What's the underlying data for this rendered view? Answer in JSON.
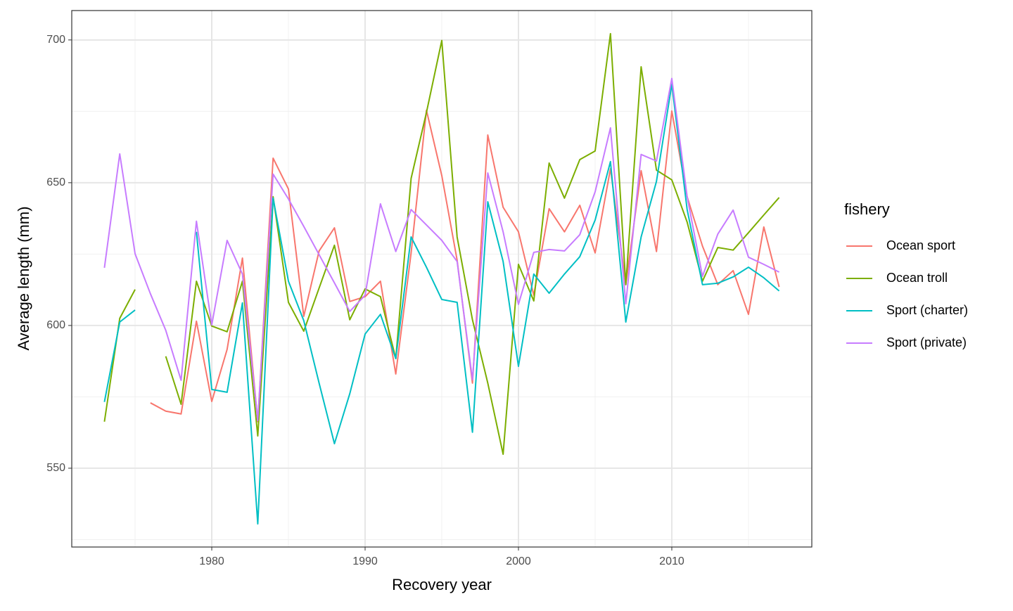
{
  "chart_data": {
    "type": "line",
    "xlabel": "Recovery year",
    "ylabel": "Average length (mm)",
    "legend_title": "fishery",
    "legend_position": "right",
    "grid": true,
    "x": [
      1973,
      1974,
      1975,
      1976,
      1977,
      1978,
      1979,
      1980,
      1981,
      1982,
      1983,
      1984,
      1985,
      1986,
      1987,
      1988,
      1989,
      1990,
      1991,
      1992,
      1993,
      1994,
      1995,
      1996,
      1997,
      1998,
      1999,
      2000,
      2001,
      2002,
      2003,
      2004,
      2005,
      2006,
      2007,
      2008,
      2009,
      2010,
      2011,
      2012,
      2013,
      2014,
      2015,
      2016,
      2017
    ],
    "xlim": [
      1970.87,
      2019.13
    ],
    "xticks": [
      1980,
      1990,
      2000,
      2010
    ],
    "ylim": [
      522.4,
      710.3
    ],
    "yticks": [
      550,
      600,
      650,
      700
    ],
    "series": [
      {
        "name": "Ocean sport",
        "color": "#F8766D",
        "values": [
          null,
          null,
          null,
          572.9,
          570.0,
          569.0,
          601.5,
          573.4,
          591.6,
          623.6,
          566.3,
          658.6,
          647.8,
          603.2,
          626.1,
          634.2,
          608.4,
          610.1,
          615.5,
          583.0,
          625.4,
          675.4,
          652.5,
          622.9,
          579.8,
          666.7,
          641.4,
          632.8,
          610.6,
          640.9,
          632.8,
          642.1,
          625.4,
          654.9,
          614.3,
          654.2,
          625.9,
          675.1,
          645.1,
          627.8,
          614.3,
          619.2,
          603.9,
          634.5,
          613.5
        ]
      },
      {
        "name": "Ocean troll",
        "color": "#7CAE00",
        "values": [
          566.3,
          602.5,
          612.6,
          null,
          589.2,
          572.4,
          615.5,
          599.8,
          597.8,
          615.5,
          561.3,
          645.1,
          608.1,
          598.0,
          613.1,
          628.1,
          602.0,
          612.8,
          610.1,
          588.4,
          651.5,
          674.6,
          699.8,
          631.0,
          602.0,
          579.8,
          554.9,
          621.4,
          608.6,
          656.9,
          644.6,
          658.1,
          661.1,
          702.2,
          614.3,
          690.6,
          654.4,
          651.0,
          636.2,
          615.5,
          627.3,
          626.4,
          632.5,
          638.7,
          644.8
        ]
      },
      {
        "name": "Sport (charter)",
        "color": "#00BFC4",
        "values": [
          573.2,
          601.2,
          605.4,
          null,
          null,
          null,
          632.8,
          577.6,
          576.6,
          607.9,
          530.5,
          644.6,
          615.5,
          601.7,
          579.8,
          558.6,
          576.1,
          597.0,
          603.9,
          588.4,
          631.0,
          620.4,
          609.1,
          608.1,
          562.6,
          643.3,
          622.4,
          585.7,
          618.0,
          611.3,
          618.0,
          624.1,
          636.9,
          657.4,
          601.2,
          631.0,
          650.5,
          684.5,
          640.6,
          614.3,
          614.8,
          617.0,
          620.4,
          616.7,
          612.1
        ]
      },
      {
        "name": "Sport (private)",
        "color": "#C77CFF",
        "values": [
          620.2,
          660.1,
          625.1,
          611.1,
          598.3,
          580.8,
          636.5,
          600.2,
          629.8,
          618.0,
          566.7,
          653.0,
          644.3,
          634.7,
          624.8,
          614.9,
          604.9,
          610.6,
          642.6,
          625.9,
          640.6,
          635.2,
          629.8,
          622.4,
          581.0,
          653.4,
          632.8,
          607.4,
          625.6,
          626.6,
          626.1,
          631.8,
          646.8,
          669.2,
          607.6,
          659.9,
          657.6,
          686.5,
          645.1,
          617.2,
          632.0,
          640.4,
          623.9,
          621.4,
          618.7
        ]
      }
    ]
  }
}
